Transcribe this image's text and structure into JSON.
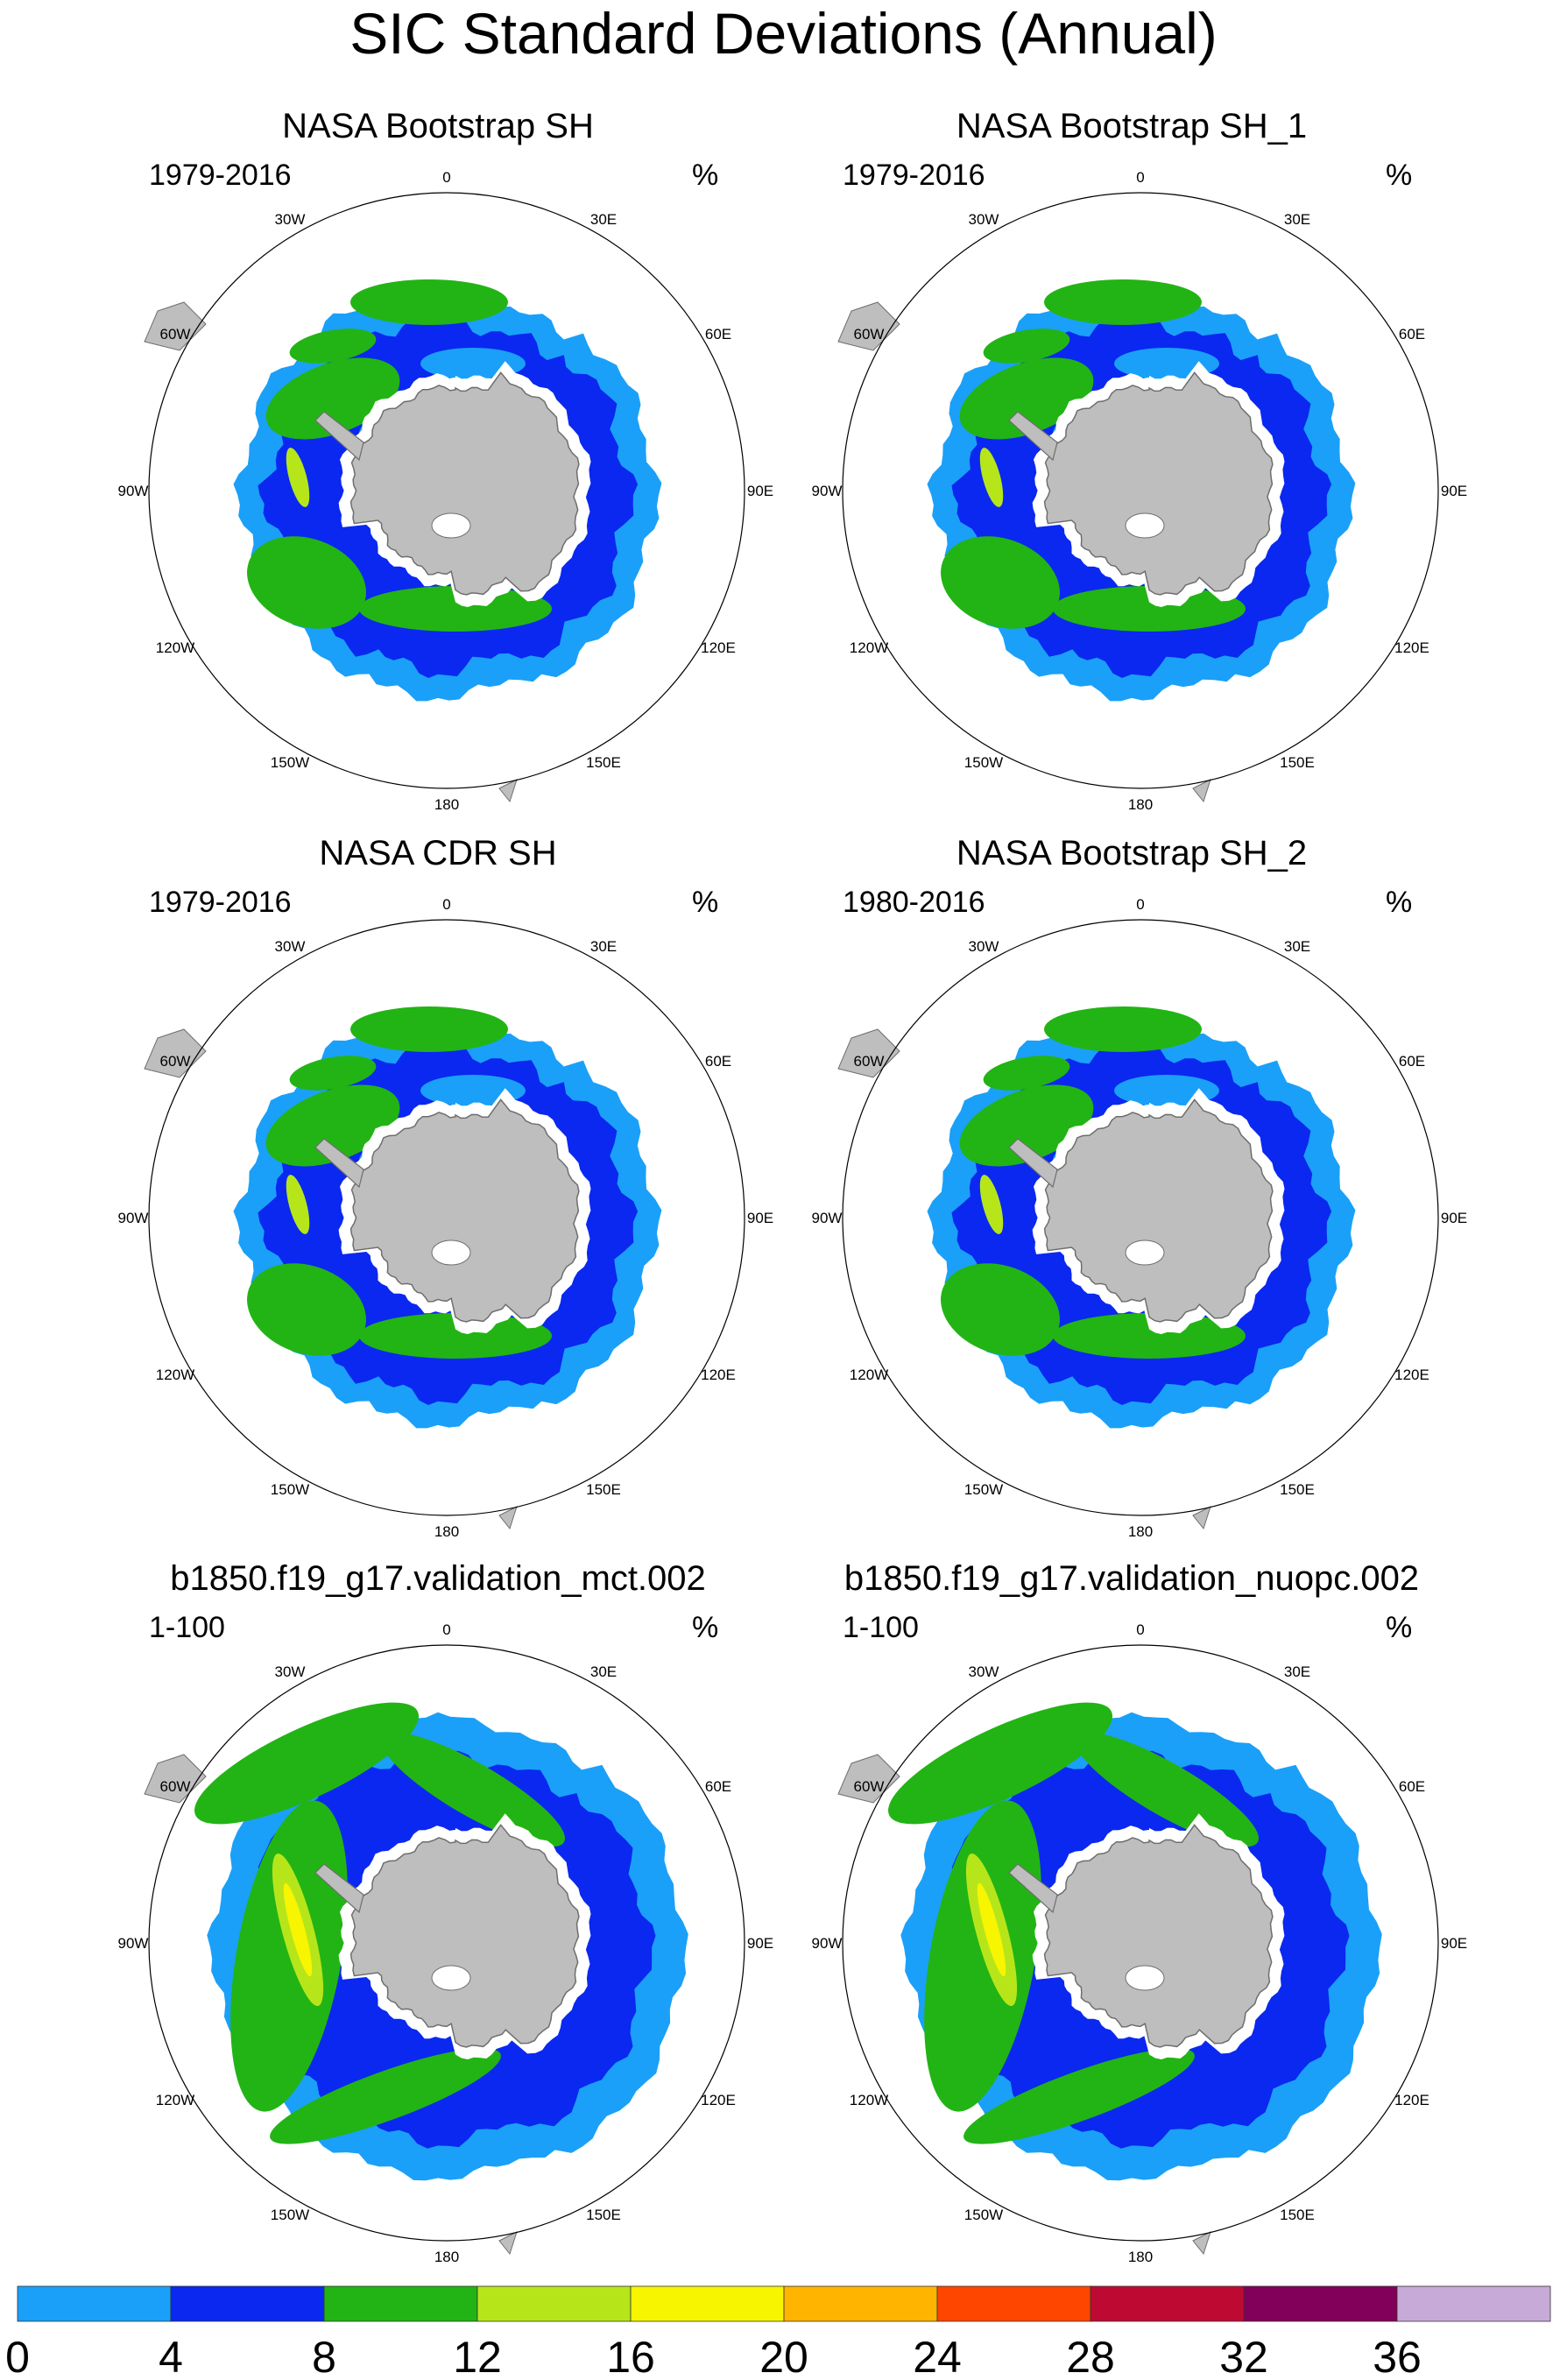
{
  "title": "SIC Standard Deviations (Annual)",
  "unit": "%",
  "lon_labels": [
    "0",
    "30E",
    "60E",
    "90E",
    "120E",
    "150E",
    "180",
    "150W",
    "120W",
    "90W",
    "60W",
    "30W"
  ],
  "panels": [
    {
      "title": "NASA Bootstrap SH",
      "period": "1979-2016",
      "pattern": "obs"
    },
    {
      "title": "NASA Bootstrap SH_1",
      "period": "1979-2016",
      "pattern": "obs"
    },
    {
      "title": "NASA CDR SH",
      "period": "1979-2016",
      "pattern": "obs"
    },
    {
      "title": "NASA Bootstrap SH_2",
      "period": "1980-2016",
      "pattern": "obs"
    },
    {
      "title": "b1850.f19_g17.validation_mct.002",
      "period": "1-100",
      "pattern": "model"
    },
    {
      "title": "b1850.f19_g17.validation_nuopc.002",
      "period": "1-100",
      "pattern": "model"
    }
  ],
  "colorbar": {
    "levels": [
      "0",
      "4",
      "8",
      "12",
      "16",
      "20",
      "24",
      "28",
      "32",
      "36"
    ],
    "colors": [
      "#1aa0f8",
      "#0a28f0",
      "#22b414",
      "#b6e61a",
      "#f8f500",
      "#ffb400",
      "#ff4600",
      "#be0a32",
      "#82005a",
      "#c8aad8"
    ]
  },
  "colors": {
    "land": "#bebebe",
    "coast": "#6e6e6e",
    "ring": "#000000"
  }
}
